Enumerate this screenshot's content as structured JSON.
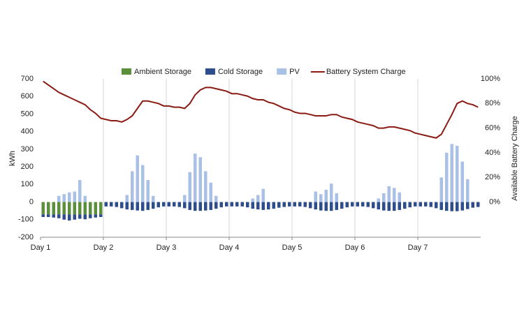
{
  "chart_data": {
    "type": "bar",
    "y_label": "kWh",
    "y2_label": "Available Battery Charge",
    "x": [
      1,
      3,
      5,
      7,
      9,
      11,
      13,
      15,
      17,
      19,
      21,
      23,
      25,
      27,
      29,
      31,
      33,
      35,
      37,
      39,
      41,
      43,
      45,
      47,
      49,
      51,
      53,
      55,
      57,
      59,
      61,
      63,
      65,
      67,
      69,
      71,
      73,
      75,
      77,
      79,
      81,
      83,
      85,
      87,
      89,
      91,
      93,
      95,
      97,
      99,
      101,
      103,
      105,
      107,
      109,
      111,
      113,
      115,
      117,
      119,
      121,
      123,
      125,
      127,
      129,
      131,
      133,
      135,
      137,
      139,
      141,
      143,
      145,
      147,
      149,
      151,
      153,
      155,
      157,
      159,
      161,
      163,
      165,
      167
    ],
    "xlim": [
      0,
      168
    ],
    "xticks": [
      {
        "value": 0,
        "label": "Day 1"
      },
      {
        "value": 24,
        "label": "Day 2"
      },
      {
        "value": 48,
        "label": "Day 3"
      },
      {
        "value": 72,
        "label": "Day 4"
      },
      {
        "value": 96,
        "label": "Day 5"
      },
      {
        "value": 120,
        "label": "Day 6"
      },
      {
        "value": 144,
        "label": "Day 7"
      }
    ],
    "ylim": [
      -200,
      700
    ],
    "yticks": [
      -200,
      -100,
      0,
      100,
      200,
      300,
      400,
      500,
      600,
      700
    ],
    "y2lim": [
      -28.57,
      100
    ],
    "y2ticks": [
      {
        "value": 0,
        "label": "0%"
      },
      {
        "value": 20,
        "label": "20%"
      },
      {
        "value": 40,
        "label": "40%"
      },
      {
        "value": 60,
        "label": "60%"
      },
      {
        "value": 80,
        "label": "80%"
      },
      {
        "value": 100,
        "label": "100%"
      }
    ],
    "xgrid": true,
    "legend": "top",
    "series": [
      {
        "name": "Ambient Storage",
        "type": "bar",
        "color": "#5b8f3a",
        "values": [
          -70,
          -70,
          -70,
          -70,
          -70,
          -70,
          -70,
          -70,
          -70,
          -70,
          -70,
          -70,
          0,
          0,
          0,
          0,
          0,
          0,
          0,
          0,
          0,
          0,
          0,
          0,
          0,
          0,
          0,
          0,
          0,
          0,
          0,
          0,
          0,
          0,
          0,
          0,
          0,
          0,
          0,
          0,
          0,
          0,
          0,
          0,
          0,
          0,
          0,
          0,
          0,
          0,
          0,
          0,
          0,
          0,
          0,
          0,
          0,
          0,
          0,
          0,
          0,
          0,
          0,
          0,
          0,
          0,
          0,
          0,
          0,
          0,
          0,
          0,
          0,
          0,
          0,
          0,
          0,
          0,
          0,
          0,
          0,
          0,
          0,
          0
        ]
      },
      {
        "name": "Cold Storage",
        "type": "bar",
        "color": "#2e4d8c",
        "values": [
          -15,
          -15,
          -18,
          -22,
          -30,
          -35,
          -30,
          -25,
          -28,
          -22,
          -18,
          -15,
          -25,
          -25,
          -28,
          -35,
          -42,
          -45,
          -48,
          -50,
          -45,
          -38,
          -30,
          -25,
          -25,
          -25,
          -28,
          -35,
          -45,
          -50,
          -50,
          -48,
          -45,
          -38,
          -30,
          -25,
          -25,
          -25,
          -25,
          -30,
          -38,
          -42,
          -45,
          -42,
          -38,
          -32,
          -28,
          -25,
          -25,
          -25,
          -28,
          -35,
          -42,
          -48,
          -50,
          -50,
          -45,
          -38,
          -30,
          -25,
          -25,
          -25,
          -28,
          -35,
          -42,
          -48,
          -50,
          -50,
          -45,
          -38,
          -30,
          -25,
          -25,
          -25,
          -28,
          -35,
          -45,
          -50,
          -52,
          -52,
          -48,
          -40,
          -32,
          -28
        ]
      },
      {
        "name": "PV",
        "type": "bar",
        "color": "#a9c1e6",
        "values": [
          0,
          0,
          0,
          35,
          45,
          55,
          60,
          125,
          35,
          0,
          0,
          0,
          0,
          0,
          0,
          0,
          40,
          175,
          265,
          210,
          125,
          35,
          0,
          0,
          0,
          0,
          0,
          40,
          170,
          275,
          255,
          175,
          110,
          35,
          0,
          0,
          0,
          0,
          0,
          0,
          20,
          40,
          75,
          0,
          0,
          0,
          0,
          0,
          0,
          0,
          0,
          0,
          60,
          45,
          70,
          105,
          50,
          0,
          0,
          0,
          0,
          0,
          0,
          0,
          20,
          50,
          90,
          80,
          55,
          0,
          0,
          0,
          0,
          0,
          0,
          0,
          140,
          280,
          330,
          320,
          230,
          130,
          0,
          0
        ]
      },
      {
        "name": "Battery System Charge",
        "type": "line",
        "axis": "y2",
        "color": "#8b1a12",
        "values": [
          98,
          95,
          92,
          89,
          87,
          85,
          83,
          81,
          79,
          75,
          72,
          68,
          67,
          66,
          66,
          65,
          67,
          70,
          76,
          82,
          82,
          81,
          80,
          78,
          78,
          77,
          77,
          76,
          80,
          87,
          91,
          93,
          93,
          92,
          91,
          90,
          88,
          88,
          87,
          86,
          84,
          83,
          83,
          81,
          80,
          78,
          76,
          75,
          73,
          72,
          72,
          71,
          70,
          70,
          70,
          71,
          71,
          69,
          68,
          67,
          65,
          64,
          63,
          62,
          60,
          60,
          61,
          61,
          60,
          59,
          58,
          56,
          55,
          54,
          53,
          52,
          55,
          63,
          71,
          80,
          82,
          80,
          79,
          77
        ]
      }
    ]
  }
}
